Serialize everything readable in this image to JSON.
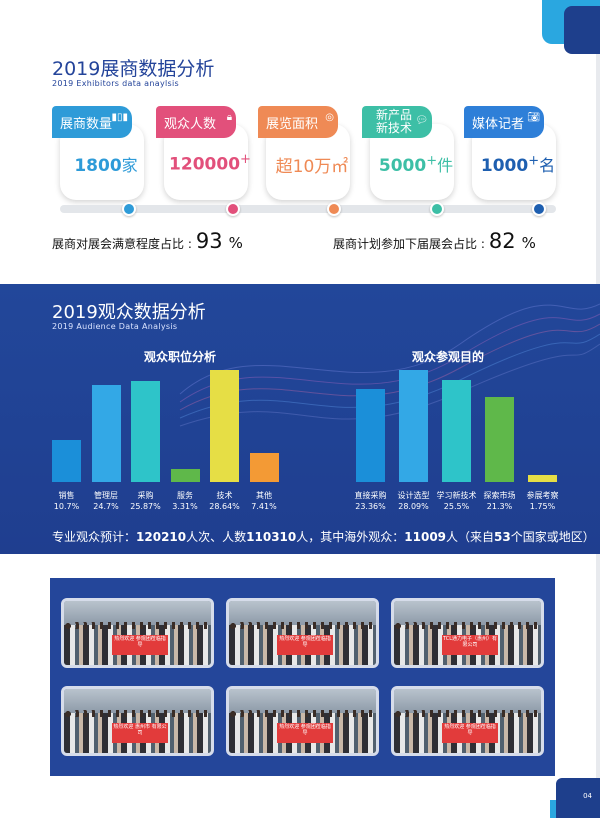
{
  "colors": {
    "navy": "#24449a",
    "card1": "#2e9bd8",
    "card2": "#e2507b",
    "card3": "#ef8a55",
    "card4": "#3dbfa6",
    "card5": "#2e7fd8",
    "bar_blue": "#1b8fd9",
    "bar_light": "#33a8e6",
    "bar_teal": "#2ec4c9",
    "bar_green": "#5fb84a",
    "bar_yellow": "#e6de45",
    "bar_orange": "#f39a35"
  },
  "exhibitors": {
    "title": "2019展商数据分析",
    "subtitle": "2019 Exhibitors data anaylsis",
    "cards": [
      {
        "label": "展商数量",
        "icon": "bar-chart-icon",
        "value": "1800",
        "unit": "家",
        "sup": ""
      },
      {
        "label": "观众人数",
        "icon": "lock-icon",
        "value": "120000",
        "unit": "",
        "sup": "+"
      },
      {
        "label": "展览面积",
        "icon": "target-icon",
        "value": "超10万㎡",
        "unit": "",
        "sup": ""
      },
      {
        "label": "新产品新技术",
        "line1": "新产品",
        "line2": "新技术",
        "icon": "chat-icon",
        "value": "5000",
        "unit": "件",
        "sup": "+"
      },
      {
        "label": "媒体记者",
        "icon": "camera-icon",
        "value": "1000",
        "unit": "名",
        "sup": "+"
      }
    ],
    "satisfaction_label": "展商对展会满意程度占比 :",
    "satisfaction_value": "93",
    "next_label": "展商计划参加下届展会占比 :",
    "next_value": "82",
    "pct": "%"
  },
  "audience": {
    "title": "2019观众数据分析",
    "subtitle": "2019  Audience Data Analysis",
    "stat_prefix": "专业观众预计：",
    "stat_n1": "120210",
    "stat_t1": "人次、人数",
    "stat_n2": "110310",
    "stat_t2": "人，其中海外观众：",
    "stat_n3": "11009",
    "stat_t3": "人（来自",
    "stat_n4": "53",
    "stat_t4": "个国家或地区）"
  },
  "chart_data": [
    {
      "type": "bar",
      "title": "观众职位分析",
      "categories": [
        "销售",
        "管理层",
        "采购",
        "服务",
        "技术",
        "其他"
      ],
      "values": [
        10.7,
        24.7,
        25.87,
        3.31,
        28.64,
        7.41
      ],
      "labels": [
        "10.7%",
        "24.7%",
        "25.87%",
        "3.31%",
        "28.64%",
        "7.41%"
      ],
      "colors": [
        "#1b8fd9",
        "#33a8e6",
        "#2ec4c9",
        "#5fb84a",
        "#e6de45",
        "#f39a35"
      ],
      "ylim": [
        0,
        28.64
      ]
    },
    {
      "type": "bar",
      "title": "观众参观目的",
      "categories": [
        "直接采购",
        "设计选型",
        "学习新技术",
        "探索市场",
        "参展考察"
      ],
      "values": [
        23.36,
        28.09,
        25.5,
        21.3,
        1.75
      ],
      "labels": [
        "23.36%",
        "28.09%",
        "25.5%",
        "21.3%",
        "1.75%"
      ],
      "colors": [
        "#1b8fd9",
        "#33a8e6",
        "#2ec4c9",
        "#5fb84a",
        "#e6de45"
      ],
      "ylim": [
        0,
        28.09
      ]
    }
  ],
  "photos": [
    {
      "banner": "热烈欢迎 参观团莅临指导"
    },
    {
      "banner": "热烈欢迎 参观团莅临指导"
    },
    {
      "banner": "TCL通力电子（惠州）有限公司"
    },
    {
      "banner": "热烈欢迎 惠州市 有限公司"
    },
    {
      "banner": "热烈欢迎 参观团莅临指导"
    },
    {
      "banner": "热烈欢迎 参观团莅临指导"
    }
  ],
  "page_number": "04"
}
